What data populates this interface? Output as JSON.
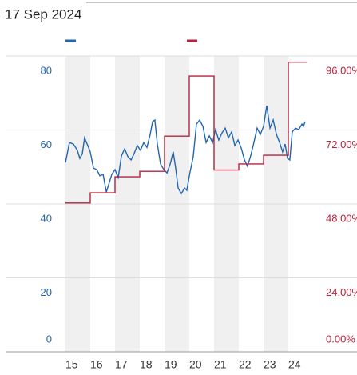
{
  "chart_data": {
    "type": "line",
    "title": "17 Sep 2024",
    "series": [
      {
        "color": "#2266b0",
        "x": [
          15,
          15.16,
          15.32,
          15.48,
          15.58,
          15.68,
          15.77,
          15.9,
          16,
          16.13,
          16.26,
          16.39,
          16.52,
          16.65,
          16.77,
          16.87,
          17,
          17.13,
          17.26,
          17.39,
          17.52,
          17.65,
          17.77,
          17.9,
          18.03,
          18.16,
          18.29,
          18.42,
          18.52,
          18.61,
          18.71,
          18.84,
          18.97,
          19.1,
          19.23,
          19.35,
          19.45,
          19.55,
          19.68,
          19.81,
          19.9,
          20.03,
          20.16,
          20.29,
          20.42,
          20.55,
          20.68,
          20.81,
          20.94,
          21.06,
          21.19,
          21.32,
          21.45,
          21.58,
          21.71,
          21.84,
          21.97,
          22.1,
          22.23,
          22.35,
          22.48,
          22.61,
          22.74,
          22.87,
          23,
          23.13,
          23.26,
          23.39,
          23.52,
          23.65,
          23.77,
          23.87,
          23.97,
          24.06,
          24.16,
          24.29,
          24.42,
          24.55,
          24.61,
          24.68
        ],
        "values": [
          51.2,
          56.6,
          56.2,
          54.5,
          52.3,
          53.6,
          57.9,
          55.8,
          54.1,
          49.7,
          49.3,
          47.6,
          48.0,
          43.2,
          45.8,
          48.0,
          49.3,
          47.1,
          53.0,
          54.9,
          52.8,
          51.9,
          53.6,
          55.8,
          54.5,
          56.6,
          55.3,
          58.8,
          62.3,
          62.7,
          56.2,
          50.8,
          49.3,
          48.4,
          50.8,
          54.1,
          49.7,
          44.3,
          42.8,
          44.3,
          43.7,
          48.6,
          52.8,
          61.6,
          62.7,
          61.0,
          56.6,
          58.4,
          56.6,
          60.1,
          57.3,
          59.2,
          60.5,
          57.9,
          59.5,
          55.8,
          57.3,
          55.1,
          51.9,
          50.2,
          53.0,
          56.6,
          60.5,
          58.8,
          61.0,
          66.6,
          60.5,
          62.7,
          58.8,
          56.6,
          54.1,
          56.2,
          52.3,
          51.9,
          59.5,
          60.5,
          60.1,
          61.6,
          61.0,
          62.3
        ]
      },
      {
        "color": "#b3243d",
        "axis": "y2",
        "step": "post",
        "x": [
          15,
          16,
          17,
          18,
          19,
          20,
          21,
          22,
          23,
          24
        ],
        "values": [
          48.3,
          51.6,
          56.8,
          58.6,
          70,
          89.5,
          59,
          61,
          63.8,
          94
        ]
      }
    ],
    "xlim": [
      15,
      24.75
    ],
    "xticks": [
      15,
      16,
      17,
      18,
      19,
      20,
      21,
      22,
      23,
      24
    ],
    "ylim": [
      0,
      80
    ],
    "yticks": [
      0,
      20,
      40,
      60,
      80
    ],
    "y2lim": [
      0,
      96
    ],
    "y2ticks": [
      {
        "value": 0,
        "label": "0.00%"
      },
      {
        "value": 24,
        "label": "24.00%"
      },
      {
        "value": 48,
        "label": "48.00%"
      },
      {
        "value": 72,
        "label": "72.00%"
      },
      {
        "value": 96,
        "label": "96.00%"
      }
    ],
    "grid": true
  }
}
